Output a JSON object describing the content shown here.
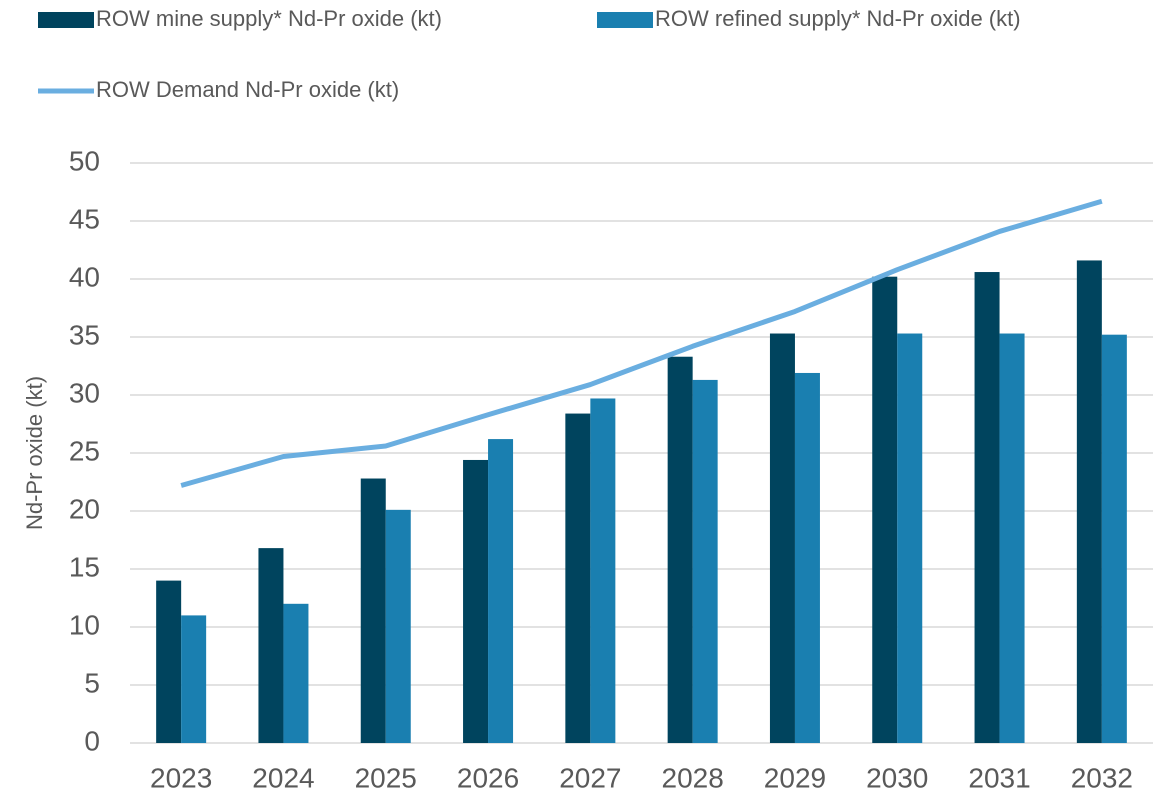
{
  "chart_data": {
    "type": "bar",
    "y_label": "Nd-Pr oxide (kt)",
    "categories": [
      "2023",
      "2024",
      "2025",
      "2026",
      "2027",
      "2028",
      "2029",
      "2030",
      "2031",
      "2032"
    ],
    "series": [
      {
        "name": "ROW mine supply* Nd-Pr oxide (kt)",
        "color": "#00445e",
        "type": "bar",
        "values": [
          14.0,
          16.8,
          22.8,
          24.4,
          28.4,
          33.3,
          35.3,
          40.2,
          40.6,
          41.6
        ]
      },
      {
        "name": "ROW refined supply* Nd-Pr oxide (kt)",
        "color": "#1a7fb0",
        "type": "bar",
        "values": [
          11.0,
          12.0,
          20.1,
          26.2,
          29.7,
          31.3,
          31.9,
          35.3,
          35.3,
          35.2
        ]
      },
      {
        "name": "ROW Demand Nd-Pr oxide (kt)",
        "color": "#6aaee0",
        "type": "line",
        "values": [
          22.2,
          24.7,
          25.6,
          28.3,
          30.9,
          34.2,
          37.2,
          40.8,
          44.1,
          46.7
        ]
      }
    ],
    "ylim": [
      0,
      50
    ],
    "yticks": [
      0,
      5,
      10,
      15,
      20,
      25,
      30,
      35,
      40,
      45,
      50
    ],
    "grid": true
  }
}
